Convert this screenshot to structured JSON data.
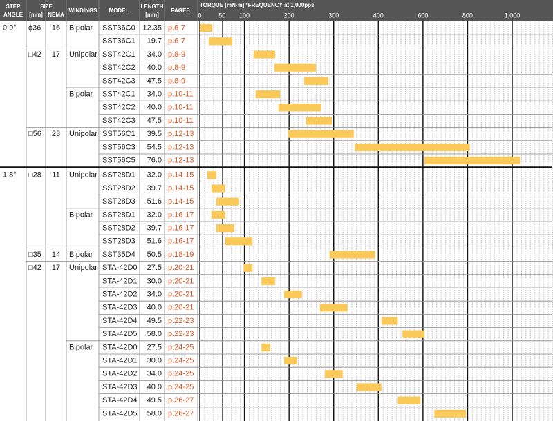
{
  "header": {
    "step_angle": [
      "STEP",
      "ANGLE"
    ],
    "size": "SIZE",
    "size_mm": "[mm]",
    "nema": "NEMA",
    "windings": "WINDINGS",
    "model": "MODEL",
    "length": [
      "LENGTH",
      "[mm]"
    ],
    "pages": "PAGES"
  },
  "torque_axis": {
    "title": "TORQUE [mN·m] *FREQUENCY at 1,000pps",
    "xlim": [
      0,
      1180
    ],
    "xticks": [
      0,
      50,
      100,
      200,
      300,
      400,
      600,
      800,
      {
        "value": 1000,
        "label": "1,000"
      }
    ],
    "bar_color": "#fbc95a"
  },
  "table": {
    "groups": [
      {
        "step": "0.9°",
        "sizes": [
          {
            "size": "ϕ36",
            "nema": "16",
            "windings": [
              {
                "winding": "Bipolar",
                "rows": [
                  {
                    "model": "SST36C0",
                    "length": "12.35",
                    "pages": "p.6-7",
                    "torque": [
                      0,
                      28
                    ]
                  },
                  {
                    "model": "SST36C1",
                    "length": "19.7",
                    "pages": "p.6-7",
                    "torque": [
                      20,
                      73
                    ]
                  }
                ]
              }
            ]
          },
          {
            "size": "□42",
            "nema": "17",
            "windings": [
              {
                "winding": "Unipolar",
                "rows": [
                  {
                    "model": "SST42C1",
                    "length": "34.0",
                    "pages": "p.8-9",
                    "torque": [
                      121,
                      169
                    ]
                  },
                  {
                    "model": "SST42C2",
                    "length": "40.0",
                    "pages": "p.8-9",
                    "torque": [
                      167,
                      260
                    ]
                  },
                  {
                    "model": "SST42C3",
                    "length": "47.5",
                    "pages": "p.8-9",
                    "torque": [
                      234,
                      288
                    ]
                  }
                ]
              },
              {
                "winding": "Bipolar",
                "rows": [
                  {
                    "model": "SST42C1",
                    "length": "34.0",
                    "pages": "p.10-11",
                    "torque": [
                      125,
                      180
                    ]
                  },
                  {
                    "model": "SST42C2",
                    "length": "40.0",
                    "pages": "p.10-11",
                    "torque": [
                      176,
                      272
                    ]
                  },
                  {
                    "model": "SST42C3",
                    "length": "47.5",
                    "pages": "p.10-11",
                    "torque": [
                      238,
                      296
                    ]
                  }
                ]
              }
            ]
          },
          {
            "size": "□56",
            "nema": "23",
            "windings": [
              {
                "winding": "Unipolar",
                "rows": [
                  {
                    "model": "SST56C1",
                    "length": "39.5",
                    "pages": "p.12-13",
                    "torque": [
                      198,
                      345
                    ]
                  },
                  {
                    "model": "SST56C3",
                    "length": "54.5",
                    "pages": "p.12-13",
                    "torque": [
                      347,
                      810
                    ]
                  },
                  {
                    "model": "SST56C5",
                    "length": "76.0",
                    "pages": "p.12-13",
                    "torque": [
                      607,
                      1035
                    ]
                  }
                ]
              }
            ]
          }
        ]
      },
      {
        "step": "1.8°",
        "sizes": [
          {
            "size": "□28",
            "nema": "11",
            "windings": [
              {
                "winding": "Unipolar",
                "rows": [
                  {
                    "model": "SST28D1",
                    "length": "32.0",
                    "pages": "p.14-15",
                    "torque": [
                      17,
                      37
                    ]
                  },
                  {
                    "model": "SST28D2",
                    "length": "39.7",
                    "pages": "p.14-15",
                    "torque": [
                      26,
                      57
                    ]
                  },
                  {
                    "model": "SST28D3",
                    "length": "51.6",
                    "pages": "p.14-15",
                    "torque": [
                      37,
                      88
                    ]
                  }
                ]
              },
              {
                "winding": "Bipolar",
                "rows": [
                  {
                    "model": "SST28D1",
                    "length": "32.0",
                    "pages": "p.16-17",
                    "torque": [
                      26,
                      57
                    ]
                  },
                  {
                    "model": "SST28D2",
                    "length": "39.7",
                    "pages": "p.16-17",
                    "torque": [
                      37,
                      77
                    ]
                  },
                  {
                    "model": "SST28D3",
                    "length": "51.6",
                    "pages": "p.16-17",
                    "torque": [
                      57,
                      118
                    ]
                  }
                ]
              }
            ]
          },
          {
            "size": "□35",
            "nema": "14",
            "windings": [
              {
                "winding": "Bipolar",
                "rows": [
                  {
                    "model": "SST35D4",
                    "length": "50.5",
                    "pages": "p.18-19",
                    "torque": [
                      291,
                      393
                    ]
                  }
                ]
              }
            ]
          },
          {
            "size": "□42",
            "nema": "17",
            "windings": [
              {
                "winding": "Unipolar",
                "rows": [
                  {
                    "model": "STA-42D0",
                    "length": "27.5",
                    "pages": "p.20-21",
                    "torque": [
                      98,
                      118
                    ]
                  },
                  {
                    "model": "STA-42D1",
                    "length": "30.0",
                    "pages": "p.20-21",
                    "torque": [
                      138,
                      169
                    ]
                  },
                  {
                    "model": "STA-42D2",
                    "length": "34.0",
                    "pages": "p.20-21",
                    "torque": [
                      189,
                      229
                    ]
                  },
                  {
                    "model": "STA-42D3",
                    "length": "40.0",
                    "pages": "p.20-21",
                    "torque": [
                      269,
                      331
                    ]
                  },
                  {
                    "model": "STA-42D4",
                    "length": "49.5",
                    "pages": "p.22-23",
                    "torque": [
                      414,
                      487
                    ]
                  },
                  {
                    "model": "STA-42D5",
                    "length": "58.0",
                    "pages": "p.22-23",
                    "torque": [
                      508,
                      607
                    ]
                  }
                ]
              },
              {
                "winding": "Bipolar",
                "rows": [
                  {
                    "model": "STA-42D0",
                    "length": "27.5",
                    "pages": "p.24-25",
                    "torque": [
                      138,
                      158
                    ]
                  },
                  {
                    "model": "STA-42D1",
                    "length": "30.0",
                    "pages": "p.24-25",
                    "torque": [
                      189,
                      218
                    ]
                  },
                  {
                    "model": "STA-42D2",
                    "length": "34.0",
                    "pages": "p.24-25",
                    "torque": [
                      280,
                      320
                    ]
                  },
                  {
                    "model": "STA-42D3",
                    "length": "40.0",
                    "pages": "p.24-25",
                    "torque": [
                      352,
                      414
                    ]
                  },
                  {
                    "model": "STA-42D4",
                    "length": "49.5",
                    "pages": "p.26-27",
                    "torque": [
                      487,
                      589
                    ]
                  },
                  {
                    "model": "STA-42D5",
                    "length": "58.0",
                    "pages": "p.26-27",
                    "torque": [
                      651,
                      793
                    ]
                  }
                ]
              }
            ]
          }
        ]
      }
    ]
  }
}
